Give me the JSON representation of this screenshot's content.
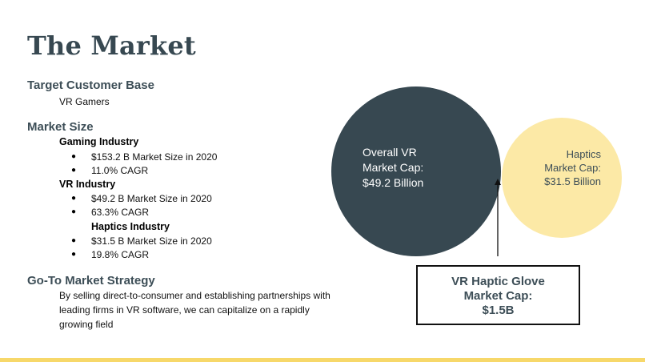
{
  "slide": {
    "title": "The Market",
    "target": {
      "heading": "Target Customer Base",
      "value": "VR Gamers"
    },
    "market_size": {
      "heading": "Market Size",
      "gaming": {
        "label": "Gaming Industry",
        "bullets": [
          "$153.2 B Market Size in 2020",
          "11.0% CAGR"
        ]
      },
      "vr": {
        "label": "VR Industry",
        "bullets": [
          "$49.2 B Market Size in 2020",
          "63.3% CAGR"
        ]
      },
      "haptics": {
        "label": "Haptics Industry",
        "bullets": [
          "$31.5 B Market Size in 2020",
          "19.8% CAGR"
        ]
      }
    },
    "gtm": {
      "heading": "Go-To Market Strategy",
      "body": "By selling direct-to-consumer and establishing partnerships with leading firms in VR software, we can capitalize on a rapidly growing field"
    },
    "bullet_char": "●"
  },
  "venn": {
    "vr_lines": [
      "Overall VR",
      "Market Cap:",
      "$49.2 Billion"
    ],
    "haptics_lines": [
      "Haptics",
      "Market Cap:",
      "$31.5 Billion"
    ],
    "callout_lines": [
      "VR Haptic Glove",
      "Market Cap:",
      "$1.5B"
    ],
    "colors": {
      "vr": "#374851",
      "haptics": "#fce9a6",
      "overlap": "#a8955a",
      "accent_bar": "#f7d86a"
    }
  }
}
